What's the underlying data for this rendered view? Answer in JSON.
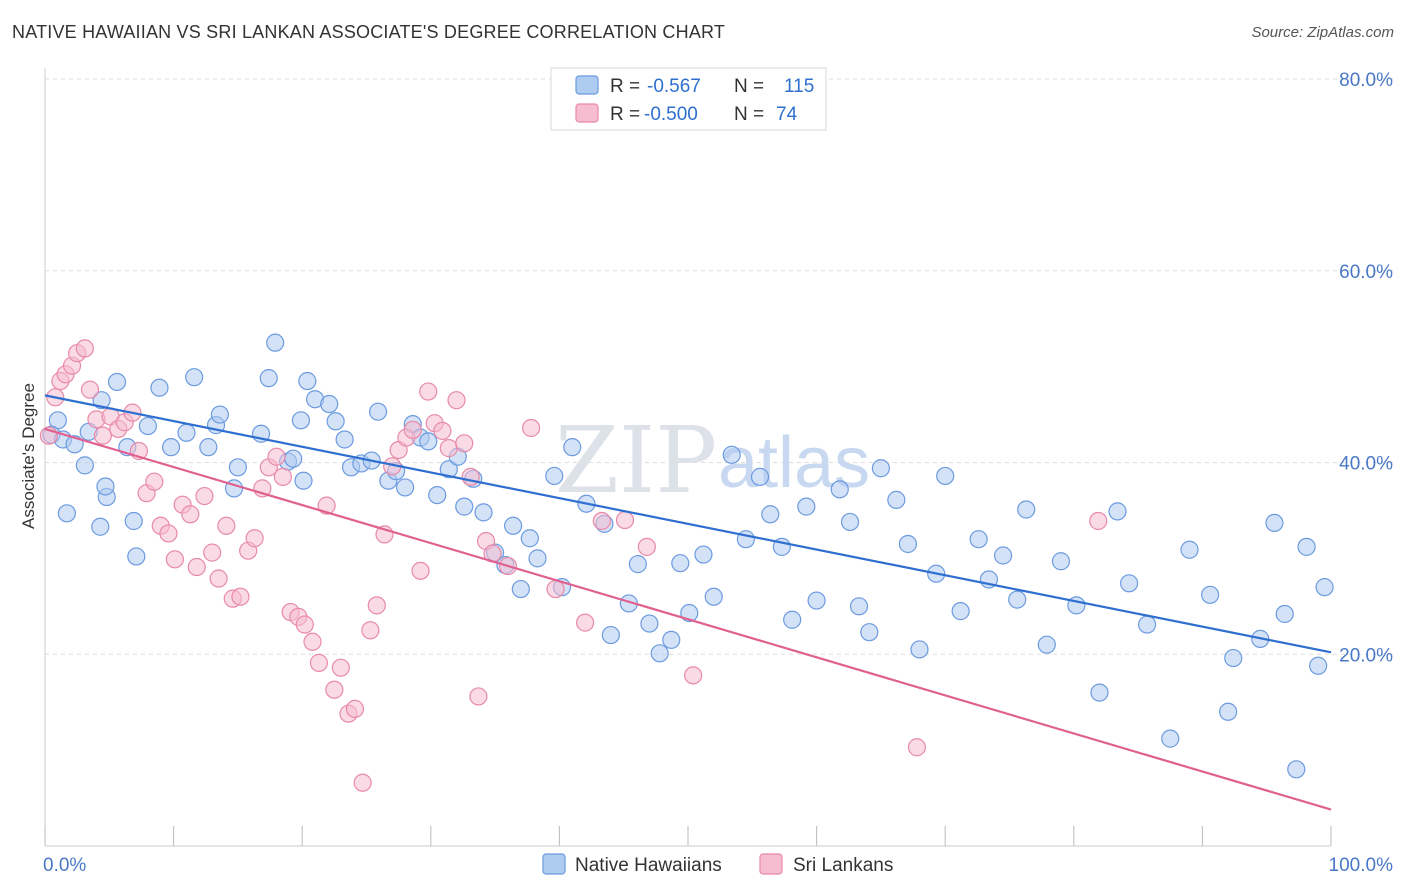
{
  "title": "NATIVE HAWAIIAN VS SRI LANKAN ASSOCIATE'S DEGREE CORRELATION CHART",
  "source": "Source: ZipAtlas.com",
  "watermark": {
    "zip": "ZIP",
    "atlas": "atlas"
  },
  "legend_top": [
    {
      "r_label": "R =",
      "r_value": "-0.567",
      "n_label": "N =",
      "n_value": "115"
    },
    {
      "r_label": "R =",
      "r_value": "-0.500",
      "n_label": "N =",
      "n_value": "74"
    }
  ],
  "legend_bottom": [
    "Native Hawaiians",
    "Sri Lankans"
  ],
  "colors": {
    "blue_fill": "#aecbf0",
    "blue_stroke": "#6c9be0",
    "blue_line": "#2f6fd0",
    "pink_fill": "#f6bcd0",
    "pink_stroke": "#e88aa8",
    "pink_line": "#e06090",
    "grid": "#dddddd",
    "tick_text": "#4a78c8"
  },
  "chart_data": {
    "type": "scatter",
    "title": "NATIVE HAWAIIAN VS SRI LANKAN ASSOCIATE'S DEGREE CORRELATION CHART",
    "xlabel": "",
    "ylabel": "Associate's Degree",
    "xlim": [
      0,
      100
    ],
    "ylim": [
      0,
      80
    ],
    "x_tick_labels": [
      "0.0%",
      "100.0%"
    ],
    "y_ticks": [
      20,
      40,
      60,
      80
    ],
    "y_tick_labels": [
      "20.0%",
      "40.0%",
      "60.0%",
      "80.0%"
    ],
    "grid": "horizontal dashed",
    "legend": "top-center and bottom-center",
    "series": [
      {
        "name": "Native Hawaiians",
        "color": "#aecbf0",
        "trend": {
          "x": [
            0,
            100
          ],
          "y": [
            47.0,
            20.2
          ]
        },
        "points": [
          [
            1,
            44.4
          ],
          [
            0.5,
            42.9
          ],
          [
            1.4,
            42.4
          ],
          [
            2.3,
            41.9
          ],
          [
            3.1,
            39.7
          ],
          [
            4.8,
            36.4
          ],
          [
            4.3,
            33.3
          ],
          [
            1.7,
            34.7
          ],
          [
            3.4,
            43.2
          ],
          [
            4.4,
            46.5
          ],
          [
            4.7,
            37.5
          ],
          [
            5.6,
            48.4
          ],
          [
            6.4,
            41.6
          ],
          [
            6.9,
            33.9
          ],
          [
            7.1,
            30.2
          ],
          [
            8.0,
            43.8
          ],
          [
            8.9,
            47.8
          ],
          [
            9.8,
            41.6
          ],
          [
            11.0,
            43.1
          ],
          [
            11.6,
            48.9
          ],
          [
            12.7,
            41.6
          ],
          [
            13.3,
            43.9
          ],
          [
            13.6,
            45.0
          ],
          [
            14.7,
            37.3
          ],
          [
            15.0,
            39.5
          ],
          [
            16.8,
            43.0
          ],
          [
            17.4,
            48.8
          ],
          [
            17.9,
            52.5
          ],
          [
            18.9,
            40.1
          ],
          [
            19.3,
            40.4
          ],
          [
            19.9,
            44.4
          ],
          [
            20.1,
            38.1
          ],
          [
            20.4,
            48.5
          ],
          [
            21.0,
            46.6
          ],
          [
            22.1,
            46.1
          ],
          [
            22.6,
            44.3
          ],
          [
            23.3,
            42.4
          ],
          [
            23.8,
            39.5
          ],
          [
            24.6,
            39.9
          ],
          [
            25.4,
            40.2
          ],
          [
            25.9,
            45.3
          ],
          [
            26.7,
            38.1
          ],
          [
            27.3,
            39.1
          ],
          [
            28.0,
            37.4
          ],
          [
            28.6,
            44.0
          ],
          [
            29.2,
            42.6
          ],
          [
            29.8,
            42.2
          ],
          [
            30.5,
            36.6
          ],
          [
            31.4,
            39.3
          ],
          [
            32.1,
            40.6
          ],
          [
            32.6,
            35.4
          ],
          [
            33.3,
            38.3
          ],
          [
            34.1,
            34.8
          ],
          [
            35.0,
            30.6
          ],
          [
            35.8,
            29.3
          ],
          [
            36.4,
            33.4
          ],
          [
            37.0,
            26.8
          ],
          [
            37.7,
            32.1
          ],
          [
            38.3,
            30.0
          ],
          [
            39.6,
            38.6
          ],
          [
            40.2,
            27.0
          ],
          [
            41.0,
            41.6
          ],
          [
            42.1,
            35.7
          ],
          [
            43.5,
            33.6
          ],
          [
            44.0,
            22.0
          ],
          [
            45.4,
            25.3
          ],
          [
            46.1,
            29.4
          ],
          [
            47.0,
            23.2
          ],
          [
            47.8,
            20.1
          ],
          [
            48.7,
            21.5
          ],
          [
            49.4,
            29.5
          ],
          [
            50.1,
            24.3
          ],
          [
            51.2,
            30.4
          ],
          [
            52.0,
            26.0
          ],
          [
            53.4,
            40.8
          ],
          [
            54.5,
            32.0
          ],
          [
            55.6,
            38.5
          ],
          [
            56.4,
            34.6
          ],
          [
            57.3,
            31.2
          ],
          [
            58.1,
            23.6
          ],
          [
            59.2,
            35.4
          ],
          [
            60.0,
            25.6
          ],
          [
            61.8,
            37.2
          ],
          [
            62.6,
            33.8
          ],
          [
            63.3,
            25.0
          ],
          [
            64.1,
            22.3
          ],
          [
            65.0,
            39.4
          ],
          [
            66.2,
            36.1
          ],
          [
            67.1,
            31.5
          ],
          [
            68.0,
            20.5
          ],
          [
            69.3,
            28.4
          ],
          [
            70.0,
            38.6
          ],
          [
            71.2,
            24.5
          ],
          [
            72.6,
            32.0
          ],
          [
            73.4,
            27.8
          ],
          [
            74.5,
            30.3
          ],
          [
            75.6,
            25.7
          ],
          [
            76.3,
            35.1
          ],
          [
            77.9,
            21.0
          ],
          [
            79.0,
            29.7
          ],
          [
            80.2,
            25.1
          ],
          [
            82.0,
            16.0
          ],
          [
            83.4,
            34.9
          ],
          [
            84.3,
            27.4
          ],
          [
            85.7,
            23.1
          ],
          [
            87.5,
            11.2
          ],
          [
            89.0,
            30.9
          ],
          [
            90.6,
            26.2
          ],
          [
            92.4,
            19.6
          ],
          [
            94.5,
            21.6
          ],
          [
            95.6,
            33.7
          ],
          [
            96.4,
            24.2
          ],
          [
            98.1,
            31.2
          ],
          [
            99.0,
            18.8
          ],
          [
            99.5,
            27.0
          ],
          [
            97.3,
            8.0
          ],
          [
            92.0,
            14.0
          ]
        ]
      },
      {
        "name": "Sri Lankans",
        "color": "#f6bcd0",
        "trend": {
          "x": [
            0,
            100
          ],
          "y": [
            43.5,
            3.8
          ]
        },
        "points": [
          [
            0.3,
            42.8
          ],
          [
            0.8,
            46.8
          ],
          [
            1.2,
            48.5
          ],
          [
            1.6,
            49.2
          ],
          [
            2.1,
            50.1
          ],
          [
            2.5,
            51.4
          ],
          [
            3.1,
            51.9
          ],
          [
            3.5,
            47.6
          ],
          [
            4.0,
            44.5
          ],
          [
            4.5,
            42.8
          ],
          [
            5.1,
            44.8
          ],
          [
            5.7,
            43.5
          ],
          [
            6.2,
            44.2
          ],
          [
            6.8,
            45.2
          ],
          [
            7.3,
            41.2
          ],
          [
            7.9,
            36.8
          ],
          [
            8.5,
            38.0
          ],
          [
            9.0,
            33.4
          ],
          [
            9.6,
            32.6
          ],
          [
            10.1,
            29.9
          ],
          [
            10.7,
            35.6
          ],
          [
            11.3,
            34.6
          ],
          [
            11.8,
            29.1
          ],
          [
            12.4,
            36.5
          ],
          [
            13.0,
            30.6
          ],
          [
            13.5,
            27.9
          ],
          [
            14.1,
            33.4
          ],
          [
            14.6,
            25.8
          ],
          [
            15.2,
            26.0
          ],
          [
            15.8,
            30.8
          ],
          [
            16.3,
            32.1
          ],
          [
            16.9,
            37.3
          ],
          [
            17.4,
            39.5
          ],
          [
            18.0,
            40.6
          ],
          [
            18.5,
            38.5
          ],
          [
            19.1,
            24.4
          ],
          [
            19.7,
            23.9
          ],
          [
            20.2,
            23.1
          ],
          [
            20.8,
            21.3
          ],
          [
            21.3,
            19.1
          ],
          [
            21.9,
            35.5
          ],
          [
            22.5,
            16.3
          ],
          [
            23.0,
            18.6
          ],
          [
            23.6,
            13.8
          ],
          [
            24.1,
            14.3
          ],
          [
            24.7,
            6.6
          ],
          [
            25.3,
            22.5
          ],
          [
            25.8,
            25.1
          ],
          [
            26.4,
            32.5
          ],
          [
            27.0,
            39.6
          ],
          [
            27.5,
            41.3
          ],
          [
            28.1,
            42.6
          ],
          [
            28.6,
            43.4
          ],
          [
            29.2,
            28.7
          ],
          [
            29.8,
            47.4
          ],
          [
            30.3,
            44.1
          ],
          [
            30.9,
            43.3
          ],
          [
            31.4,
            41.5
          ],
          [
            32.0,
            46.5
          ],
          [
            32.6,
            42.0
          ],
          [
            33.1,
            38.5
          ],
          [
            33.7,
            15.6
          ],
          [
            34.3,
            31.8
          ],
          [
            34.8,
            30.5
          ],
          [
            36.0,
            29.2
          ],
          [
            37.8,
            43.6
          ],
          [
            39.7,
            26.8
          ],
          [
            42.0,
            23.3
          ],
          [
            43.3,
            33.9
          ],
          [
            45.1,
            34.0
          ],
          [
            46.8,
            31.2
          ],
          [
            50.4,
            17.8
          ],
          [
            67.8,
            10.3
          ],
          [
            81.9,
            33.9
          ]
        ]
      }
    ]
  }
}
